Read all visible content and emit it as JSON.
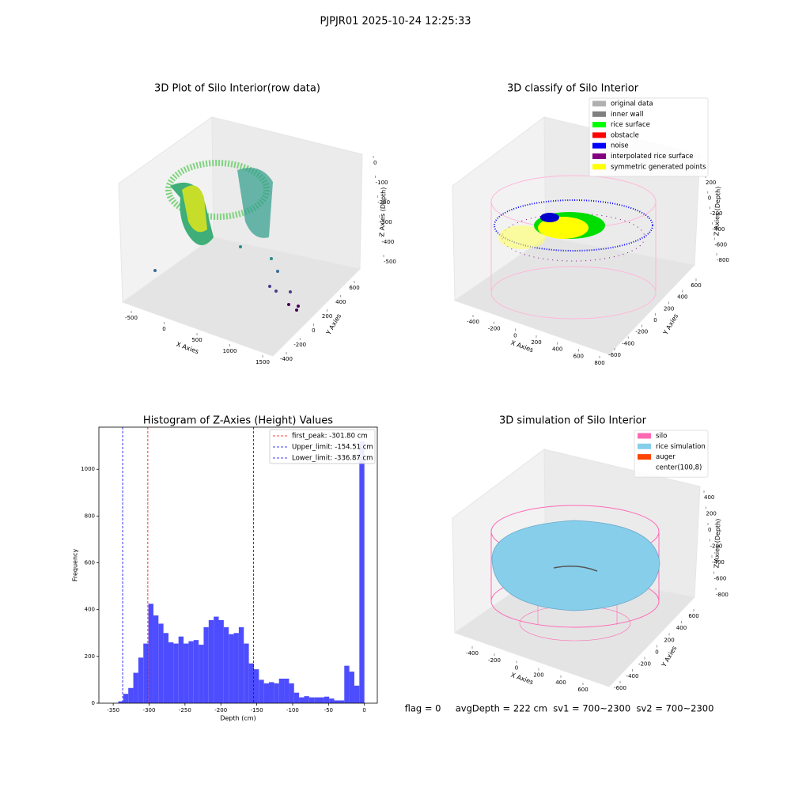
{
  "title": "PJPJR01 2025-10-24 12:25:33",
  "chart_data": [
    {
      "type": "scatter3d",
      "title": "3D Plot of Silo Interior(row data)",
      "x_label": "X Axies",
      "y_label": "Y Axies",
      "z_label": "Z Axies (Depth)",
      "xticks": [
        -500,
        0,
        500,
        1000,
        1500
      ],
      "yticks": [
        -400,
        -200,
        0,
        200,
        400,
        600
      ],
      "zticks": [
        0,
        -100,
        -200,
        -300,
        -400,
        -500
      ]
    },
    {
      "type": "scatter3d",
      "title": "3D classify of Silo Interior",
      "x_label": "X Axies",
      "y_label": "Y Axies",
      "z_label": "Z Axies (Depth)",
      "xticks": [
        -400,
        -200,
        0,
        200,
        400,
        600,
        800
      ],
      "yticks": [
        -600,
        -400,
        -200,
        0,
        200,
        400,
        600
      ],
      "zticks": [
        200,
        0,
        -200,
        -400,
        -600,
        -800
      ],
      "series": [
        {
          "name": "original data",
          "color": "#b0b0b0"
        },
        {
          "name": "inner wall",
          "color": "#808080"
        },
        {
          "name": "rice surface",
          "color": "#00ff00"
        },
        {
          "name": "obstacle",
          "color": "#ff0000"
        },
        {
          "name": "noise",
          "color": "#0000ff"
        },
        {
          "name": "interpolated rice surface",
          "color": "#800080"
        },
        {
          "name": "symmetric generated points",
          "color": "#ffff00"
        }
      ]
    },
    {
      "type": "histogram",
      "title": "Histogram of Z-Axies (Height) Values",
      "x_label": "Depth (cm)",
      "y_label": "Frequency",
      "color": "#4d4dff",
      "bins": [
        -343,
        -336,
        -329,
        -322,
        -315,
        -308,
        -301,
        -294,
        -287,
        -280,
        -273,
        -266,
        -259,
        -252,
        -245,
        -238,
        -231,
        -224,
        -217,
        -210,
        -203,
        -196,
        -189,
        -182,
        -175,
        -168,
        -161,
        -154,
        -147,
        -140,
        -133,
        -126,
        -119,
        -112,
        -105,
        -98,
        -91,
        -84,
        -77,
        -70,
        -63,
        -56,
        -49,
        -42,
        -35,
        -28,
        -21,
        -14,
        -7,
        0
      ],
      "values": [
        8,
        40,
        65,
        130,
        195,
        255,
        425,
        375,
        340,
        300,
        260,
        255,
        285,
        255,
        265,
        270,
        250,
        325,
        355,
        370,
        355,
        325,
        295,
        300,
        325,
        255,
        170,
        145,
        100,
        85,
        90,
        85,
        105,
        105,
        85,
        45,
        25,
        30,
        25,
        25,
        25,
        28,
        20,
        12,
        12,
        160,
        135,
        75,
        1120
      ],
      "xlim": [
        -370,
        18
      ],
      "ylim": [
        0,
        1180
      ],
      "xticks": [
        -350,
        -300,
        -250,
        -200,
        -150,
        -100,
        -50,
        0
      ],
      "yticks": [
        0,
        200,
        400,
        600,
        800,
        1000
      ],
      "lines": [
        {
          "value": -301.8,
          "label": "first_peak: -301.80 cm",
          "color": "#ff0000"
        },
        {
          "value": -154.51,
          "label": "Upper_limit: -154.51 cm",
          "color": "#0000ff"
        },
        {
          "value": -336.87,
          "label": "Lower_limit: -336.87 cm",
          "color": "#0000ff"
        }
      ]
    },
    {
      "type": "surface3d",
      "title": "3D simulation of Silo Interior",
      "x_label": "X Axies",
      "y_label": "Y Axies",
      "z_label": "Z Axies (Depth)",
      "xticks": [
        -400,
        -200,
        0,
        200,
        400,
        600
      ],
      "yticks": [
        -600,
        -400,
        -200,
        0,
        200,
        400,
        600
      ],
      "zticks": [
        400,
        200,
        0,
        -200,
        -400,
        -600,
        -800
      ],
      "series": [
        {
          "name": "silo",
          "color": "#ff69b4"
        },
        {
          "name": "rice simulation",
          "color": "#87ceeb"
        },
        {
          "name": "auger",
          "color": "#ff4500"
        },
        {
          "name": "center(100,8)",
          "color": "#ffffff"
        }
      ],
      "annotation": "flag = 0     avgDepth = 222 cm  sv1 = 700~2300  sv2 = 700~2300"
    }
  ]
}
